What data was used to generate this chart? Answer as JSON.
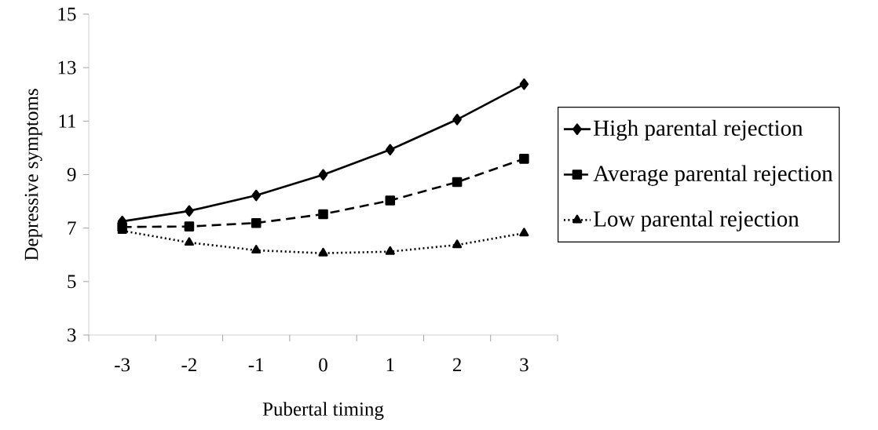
{
  "chart_data": {
    "type": "line",
    "xlabel": "Pubertal timing",
    "ylabel": "Depressive symptoms",
    "categories": [
      "-3",
      "-2",
      "-1",
      "0",
      "1",
      "2",
      "3"
    ],
    "ylim": [
      3,
      15
    ],
    "yticks": [
      3,
      5,
      7,
      9,
      11,
      13,
      15
    ],
    "grid": false,
    "legend": "right",
    "series": [
      {
        "name": "High parental rejection",
        "color": "#000000",
        "marker": "diamond",
        "line_style": "solid",
        "values": [
          7.25,
          7.64,
          8.22,
          8.99,
          9.93,
          11.06,
          12.38
        ]
      },
      {
        "name": "Average parental rejection",
        "color": "#000000",
        "marker": "square",
        "line_style": "dashed",
        "values": [
          7.04,
          7.06,
          7.19,
          7.52,
          8.03,
          8.72,
          9.59
        ]
      },
      {
        "name": "Low parental rejection",
        "color": "#000000",
        "marker": "triangle",
        "line_style": "dotted",
        "values": [
          6.9,
          6.46,
          6.17,
          6.06,
          6.12,
          6.37,
          6.81
        ]
      }
    ]
  }
}
